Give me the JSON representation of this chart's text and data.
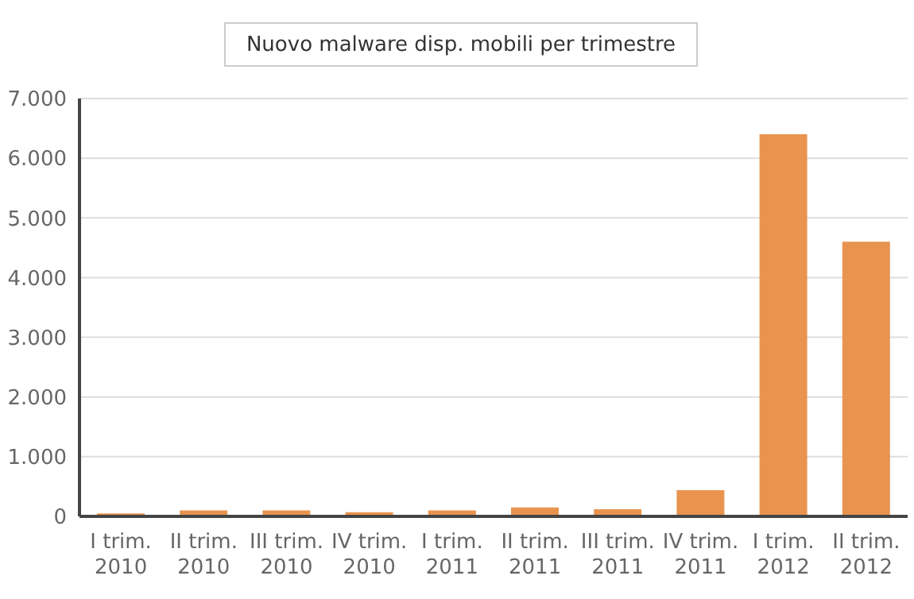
{
  "chart_data": {
    "type": "bar",
    "title": "Nuovo malware disp. mobili per trimestre",
    "categories": [
      "I trim.\n2010",
      "II trim.\n2010",
      "III trim.\n2010",
      "IV trim.\n2010",
      "I trim.\n2011",
      "II trim.\n2011",
      "III trim.\n2011",
      "IV trim.\n2011",
      "I trim.\n2012",
      "II trim.\n2012"
    ],
    "values": [
      50,
      100,
      100,
      70,
      100,
      150,
      120,
      440,
      6400,
      4600
    ],
    "color": "#e8944f",
    "ylim": [
      0,
      7000
    ],
    "yticks": [
      {
        "value": 0,
        "label": "0"
      },
      {
        "value": 1000,
        "label": "1.000"
      },
      {
        "value": 2000,
        "label": "2.000"
      },
      {
        "value": 3000,
        "label": "3.000"
      },
      {
        "value": 4000,
        "label": "4.000"
      },
      {
        "value": 5000,
        "label": "5.000"
      },
      {
        "value": 6000,
        "label": "6.000"
      },
      {
        "value": 7000,
        "label": "7.000"
      }
    ],
    "grid": "y",
    "legend": false
  }
}
